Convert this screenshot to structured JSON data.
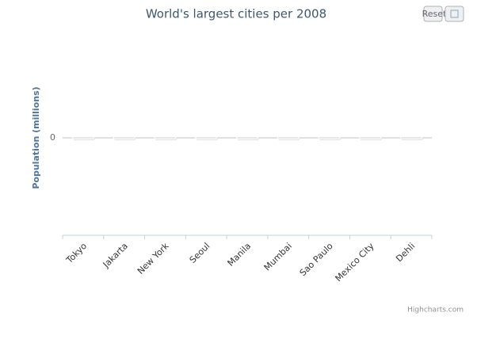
{
  "chart_data": {
    "type": "bar",
    "title": "World's largest cities per 2008",
    "y_label": "Population (millions)",
    "categories": [
      "Tokyo",
      "Jakarta",
      "New York",
      "Seoul",
      "Manila",
      "Mumbai",
      "Sao Paulo",
      "Mexico City",
      "Dehli"
    ],
    "values": [
      0,
      0,
      0,
      0,
      0,
      0,
      0,
      0,
      0
    ],
    "color": "#e6e6e6",
    "ylim": [
      -1,
      1
    ],
    "yticks": [
      0
    ],
    "grid": true,
    "reset_label": "Reset",
    "credits": "Highcharts.com"
  }
}
